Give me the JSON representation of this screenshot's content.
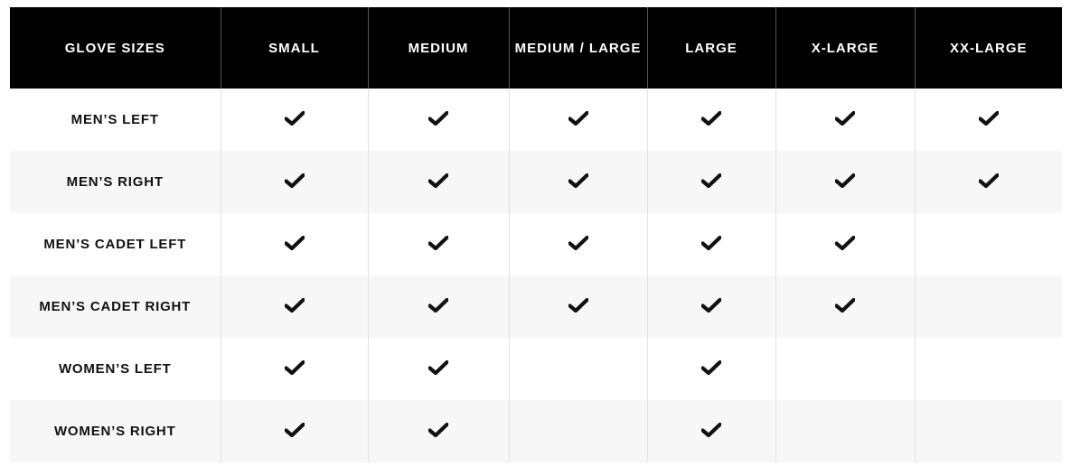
{
  "table": {
    "columns": [
      "GLOVE SIZES",
      "SMALL",
      "MEDIUM",
      "MEDIUM / LARGE",
      "LARGE",
      "X-LARGE",
      "XX-LARGE"
    ],
    "rows": [
      {
        "label": "MEN’S LEFT",
        "available": [
          true,
          true,
          true,
          true,
          true,
          true
        ]
      },
      {
        "label": "MEN’S RIGHT",
        "available": [
          true,
          true,
          true,
          true,
          true,
          true
        ]
      },
      {
        "label": "MEN’S CADET LEFT",
        "available": [
          true,
          true,
          true,
          true,
          true,
          false
        ]
      },
      {
        "label": "MEN’S CADET RIGHT",
        "available": [
          true,
          true,
          true,
          true,
          true,
          false
        ]
      },
      {
        "label": "WOMEN’S LEFT",
        "available": [
          true,
          true,
          false,
          true,
          false,
          false
        ]
      },
      {
        "label": "WOMEN’S RIGHT",
        "available": [
          true,
          true,
          false,
          true,
          false,
          false
        ]
      }
    ],
    "icon": "checkmark-icon",
    "header_bg": "#000000",
    "alt_row_bg": "#f7f7f7"
  }
}
